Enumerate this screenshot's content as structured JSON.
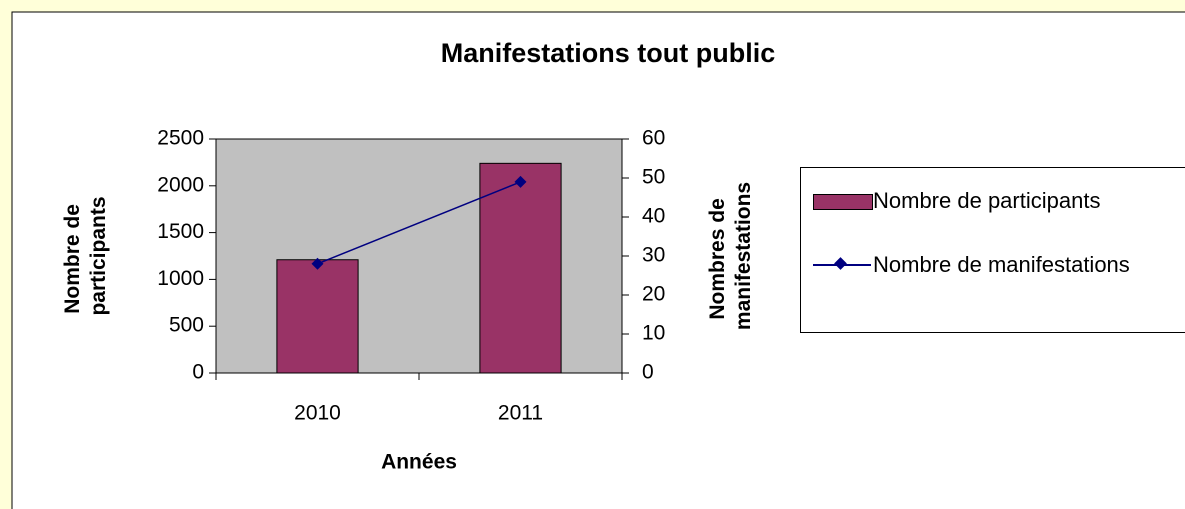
{
  "chart_data": {
    "type": "bar",
    "title": "Manifestations tout public",
    "x_label": "Années",
    "y_label": [
      "Nombre de",
      "participants"
    ],
    "y2_label": [
      "Nombres de",
      "manifestations"
    ],
    "categories": [
      "2010",
      "2011"
    ],
    "series": [
      {
        "name": "Nombre de participants",
        "type": "bar",
        "color": "#993366",
        "values": [
          1210,
          2240
        ]
      },
      {
        "name": "Nombre de manifestations",
        "type": "line",
        "color": "#000080",
        "axis": "y2",
        "values": [
          28,
          49
        ]
      }
    ],
    "ylim": [
      0,
      2500
    ],
    "yticks": [
      0,
      500,
      1000,
      1500,
      2000,
      2500
    ],
    "y2lim": [
      0,
      60
    ],
    "y2ticks": [
      0,
      10,
      20,
      30,
      40,
      50,
      60
    ],
    "plot_background": "#c0c0c0"
  }
}
